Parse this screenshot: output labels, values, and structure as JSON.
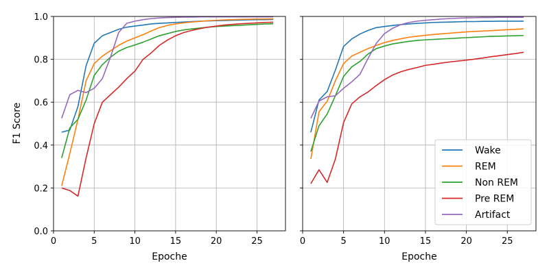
{
  "chart_data": [
    {
      "type": "line",
      "title": "",
      "xlabel": "Epoche",
      "ylabel": "F1 Score",
      "xlim": [
        0,
        28.5
      ],
      "ylim": [
        0.0,
        1.0
      ],
      "xticks": [
        0,
        5,
        10,
        15,
        20,
        25
      ],
      "yticks": [
        0.0,
        0.2,
        0.4,
        0.6,
        0.8,
        1.0
      ],
      "x": [
        1,
        2,
        3,
        4,
        5,
        6,
        7,
        8,
        9,
        10,
        11,
        12,
        13,
        14,
        15,
        16,
        17,
        18,
        19,
        20,
        21,
        22,
        23,
        24,
        25,
        26,
        27
      ],
      "grid": true,
      "legend": "none",
      "series": [
        {
          "name": "Wake",
          "color": "#1f77b4",
          "values": [
            0.46,
            0.47,
            0.58,
            0.77,
            0.875,
            0.91,
            0.925,
            0.94,
            0.95,
            0.955,
            0.96,
            0.965,
            0.968,
            0.97,
            0.972,
            0.974,
            0.976,
            0.978,
            0.979,
            0.98,
            0.981,
            0.982,
            0.983,
            0.984,
            0.985,
            0.985,
            0.986
          ]
        },
        {
          "name": "REM",
          "color": "#ff7f0e",
          "values": [
            0.21,
            0.36,
            0.52,
            0.7,
            0.78,
            0.815,
            0.84,
            0.865,
            0.885,
            0.9,
            0.915,
            0.932,
            0.948,
            0.958,
            0.965,
            0.97,
            0.974,
            0.977,
            0.98,
            0.982,
            0.984,
            0.985,
            0.986,
            0.987,
            0.988,
            0.988,
            0.989
          ]
        },
        {
          "name": "Non REM",
          "color": "#2ca02c",
          "values": [
            0.34,
            0.48,
            0.52,
            0.61,
            0.725,
            0.775,
            0.81,
            0.838,
            0.855,
            0.867,
            0.88,
            0.895,
            0.91,
            0.92,
            0.93,
            0.937,
            0.942,
            0.946,
            0.95,
            0.953,
            0.955,
            0.957,
            0.959,
            0.961,
            0.963,
            0.965,
            0.966
          ]
        },
        {
          "name": "Pre REM",
          "color": "#d62728",
          "values": [
            0.2,
            0.188,
            0.162,
            0.34,
            0.5,
            0.6,
            0.635,
            0.67,
            0.71,
            0.745,
            0.8,
            0.83,
            0.865,
            0.89,
            0.91,
            0.925,
            0.935,
            0.943,
            0.95,
            0.955,
            0.96,
            0.963,
            0.966,
            0.968,
            0.97,
            0.972,
            0.973
          ]
        },
        {
          "name": "Artifact",
          "color": "#9467bd",
          "values": [
            0.525,
            0.635,
            0.655,
            0.645,
            0.665,
            0.71,
            0.81,
            0.925,
            0.968,
            0.978,
            0.985,
            0.99,
            0.993,
            0.995,
            0.996,
            0.997,
            0.997,
            0.998,
            0.998,
            0.998,
            0.998,
            0.998,
            0.998,
            0.998,
            0.998,
            0.998,
            0.998
          ]
        }
      ]
    },
    {
      "type": "line",
      "title": "",
      "xlabel": "Epoche",
      "ylabel": "",
      "xlim": [
        0,
        28.5
      ],
      "ylim": [
        0.0,
        1.0
      ],
      "xticks": [
        0,
        5,
        10,
        15,
        20,
        25
      ],
      "yticks": [
        0.0,
        0.2,
        0.4,
        0.6,
        0.8,
        1.0
      ],
      "x": [
        1,
        2,
        3,
        4,
        5,
        6,
        7,
        8,
        9,
        10,
        11,
        12,
        13,
        14,
        15,
        16,
        17,
        18,
        19,
        20,
        21,
        22,
        23,
        24,
        25,
        26,
        27
      ],
      "grid": true,
      "legend": "lower-right",
      "series": [
        {
          "name": "Wake",
          "color": "#1f77b4",
          "values": [
            0.46,
            0.61,
            0.65,
            0.75,
            0.86,
            0.895,
            0.918,
            0.935,
            0.948,
            0.953,
            0.958,
            0.962,
            0.965,
            0.968,
            0.97,
            0.972,
            0.973,
            0.974,
            0.975,
            0.976,
            0.976,
            0.977,
            0.977,
            0.978,
            0.978,
            0.978,
            0.978
          ]
        },
        {
          "name": "REM",
          "color": "#ff7f0e",
          "values": [
            0.335,
            0.555,
            0.605,
            0.7,
            0.78,
            0.815,
            0.833,
            0.85,
            0.865,
            0.878,
            0.888,
            0.896,
            0.903,
            0.908,
            0.912,
            0.916,
            0.919,
            0.922,
            0.925,
            0.928,
            0.93,
            0.932,
            0.934,
            0.936,
            0.938,
            0.94,
            0.942
          ]
        },
        {
          "name": "Non REM",
          "color": "#2ca02c",
          "values": [
            0.37,
            0.49,
            0.545,
            0.63,
            0.72,
            0.765,
            0.79,
            0.825,
            0.85,
            0.862,
            0.872,
            0.878,
            0.884,
            0.888,
            0.891,
            0.893,
            0.895,
            0.897,
            0.899,
            0.901,
            0.903,
            0.905,
            0.907,
            0.908,
            0.909,
            0.91,
            0.911
          ]
        },
        {
          "name": "Pre REM",
          "color": "#d62728",
          "values": [
            0.22,
            0.285,
            0.226,
            0.335,
            0.505,
            0.592,
            0.625,
            0.648,
            0.678,
            0.705,
            0.727,
            0.742,
            0.753,
            0.762,
            0.772,
            0.777,
            0.783,
            0.788,
            0.792,
            0.796,
            0.801,
            0.806,
            0.812,
            0.817,
            0.822,
            0.827,
            0.833
          ]
        },
        {
          "name": "Artifact",
          "color": "#9467bd",
          "values": [
            0.525,
            0.605,
            0.625,
            0.63,
            0.665,
            0.695,
            0.73,
            0.805,
            0.875,
            0.92,
            0.945,
            0.962,
            0.972,
            0.978,
            0.982,
            0.985,
            0.988,
            0.99,
            0.992,
            0.993,
            0.994,
            0.995,
            0.995,
            0.996,
            0.996,
            0.996,
            0.996
          ]
        }
      ]
    }
  ]
}
